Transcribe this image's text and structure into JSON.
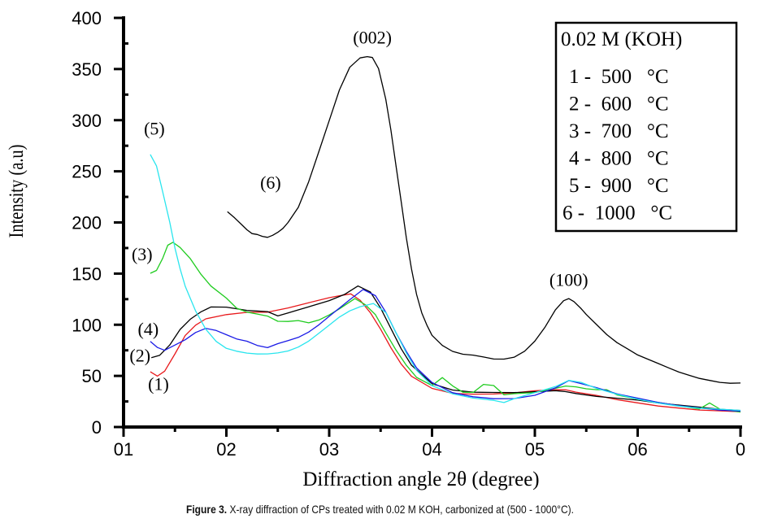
{
  "chart_data": {
    "type": "line",
    "title": "",
    "xlabel": "Diffraction angle 2θ (degree)",
    "ylabel": "Intensity (a.u)",
    "xlim": [
      10,
      70
    ],
    "ylim": [
      0,
      400
    ],
    "x_ticks": [
      10,
      20,
      30,
      40,
      50,
      60,
      70
    ],
    "x_tick_labels": [
      "01",
      "02",
      "03",
      "04",
      "05",
      "06",
      "0"
    ],
    "y_ticks": [
      0,
      50,
      100,
      150,
      200,
      250,
      300,
      350,
      400
    ],
    "y_tick_labels": [
      "0",
      "50",
      "100",
      "150",
      "200",
      "250",
      "300",
      "350",
      "400"
    ],
    "grid": false,
    "legend": {
      "placement": "top-right",
      "title": "0.02 M (KOH)",
      "entries": [
        "1 -  500   °C",
        "2 -  600   °C",
        "3 -  700   °C",
        "4 -  800   °C",
        "5 -  900   °C",
        "6 -  1000   °C"
      ]
    },
    "annotations": [
      {
        "text": "(002)",
        "x": 34.2,
        "y": 375
      },
      {
        "text": "(100)",
        "x": 53.3,
        "y": 138
      },
      {
        "text": "(6)",
        "x": 24.3,
        "y": 233
      },
      {
        "text": "(5)",
        "x": 13.0,
        "y": 286
      },
      {
        "text": "(3)",
        "x": 11.8,
        "y": 163
      },
      {
        "text": "(4)",
        "x": 12.4,
        "y": 90
      },
      {
        "text": "(2)",
        "x": 11.6,
        "y": 64
      },
      {
        "text": "(1)",
        "x": 13.4,
        "y": 36
      }
    ],
    "series": [
      {
        "name": "1 - 500 °C",
        "label": "(1)",
        "color": "#e8191c",
        "x": [
          12.6,
          13.3,
          14.0,
          15.0,
          16.0,
          17.0,
          18.0,
          20.0,
          22.0,
          24.0,
          26.0,
          28.0,
          30.0,
          31.0,
          32.1,
          33.0,
          34.0,
          35.0,
          36.0,
          37.0,
          38.0,
          40.0,
          42.0,
          44.0,
          46.0,
          48.0,
          50.0,
          52.0,
          53.0,
          54.0,
          56.0,
          58.0,
          60.0,
          62.0,
          64.0,
          66.0,
          68.0,
          70.0
        ],
        "y": [
          54,
          50,
          55,
          72,
          90,
          100,
          106,
          110,
          112,
          112,
          116,
          121,
          126,
          128,
          130,
          124,
          112,
          96,
          78,
          62,
          50,
          38,
          33,
          32,
          32,
          33,
          35,
          36,
          36,
          34,
          31,
          27,
          24,
          21,
          19,
          17,
          16,
          15
        ]
      },
      {
        "name": "2 - 600 °C",
        "label": "(2)",
        "color": "#000000",
        "x": [
          12.7,
          13.5,
          14.5,
          15.5,
          16.5,
          17.5,
          18.5,
          20.0,
          22.0,
          24.0,
          25.0,
          26.0,
          28.0,
          30.0,
          31.5,
          32.8,
          34.0,
          35.0,
          36.0,
          37.0,
          38.0,
          40.0,
          42.0,
          44.0,
          46.0,
          48.0,
          50.0,
          52.0,
          53.0,
          54.0,
          56.0,
          58.0,
          60.0,
          62.0,
          64.0,
          66.0,
          68.0,
          70.0
        ],
        "y": [
          68,
          70,
          80,
          95,
          105,
          112,
          117,
          117,
          114,
          113,
          109,
          112,
          118,
          124,
          130,
          138,
          132,
          116,
          96,
          76,
          60,
          42,
          36,
          34,
          34,
          34,
          35,
          36,
          35,
          33,
          30,
          28,
          26,
          23,
          21,
          19,
          17,
          16
        ]
      },
      {
        "name": "3 - 700 °C",
        "label": "(3)",
        "color": "#1fcc1f",
        "x": [
          12.6,
          13.2,
          13.8,
          14.3,
          14.8,
          15.5,
          16.5,
          17.5,
          18.5,
          20.0,
          21.0,
          22.0,
          23.0,
          24.0,
          25.0,
          26.0,
          27.0,
          28.0,
          29.0,
          30.0,
          31.0,
          32.5,
          33.5,
          34.5,
          35.5,
          36.5,
          37.5,
          38.5,
          40.0,
          41.0,
          42.0,
          43.0,
          44.0,
          45.0,
          46.0,
          47.0,
          48.0,
          50.0,
          52.0,
          53.0,
          54.0,
          55.0,
          56.0,
          57.0,
          58.0,
          60.0,
          62.0,
          64.0,
          66.0,
          67.0,
          68.0,
          70.0
        ],
        "y": [
          150,
          153,
          165,
          178,
          181,
          176,
          165,
          150,
          138,
          126,
          116,
          112,
          110,
          108,
          103,
          103,
          104,
          102,
          105,
          110,
          116,
          126,
          120,
          110,
          92,
          75,
          60,
          48,
          40,
          48,
          40,
          34,
          34,
          42,
          41,
          32,
          33,
          34,
          38,
          40,
          39,
          37,
          36,
          36,
          31,
          27,
          24,
          21,
          18,
          24,
          18,
          15
        ]
      },
      {
        "name": "4 - 800 °C",
        "label": "(4)",
        "color": "#1a1ae6",
        "x": [
          12.6,
          13.3,
          14.0,
          15.0,
          16.0,
          17.0,
          18.0,
          19.0,
          20.0,
          21.0,
          22.0,
          23.0,
          24.0,
          25.0,
          26.0,
          27.0,
          28.0,
          29.0,
          30.0,
          31.0,
          32.0,
          33.3,
          34.5,
          35.5,
          36.5,
          37.5,
          38.5,
          40.0,
          42.0,
          44.0,
          46.0,
          48.0,
          50.0,
          52.0,
          53.3,
          54.5,
          56.0,
          58.0,
          60.0,
          62.0,
          64.0,
          66.0,
          68.0,
          70.0
        ],
        "y": [
          84,
          78,
          75,
          80,
          85,
          92,
          96,
          94,
          90,
          86,
          84,
          80,
          78,
          82,
          85,
          88,
          93,
          100,
          108,
          116,
          124,
          134,
          128,
          112,
          92,
          74,
          58,
          44,
          34,
          30,
          28,
          28,
          31,
          38,
          45,
          42,
          38,
          32,
          28,
          24,
          21,
          19,
          17,
          16
        ]
      },
      {
        "name": "5 - 900 °C",
        "label": "(5)",
        "color": "#29e5ee",
        "x": [
          12.6,
          13.2,
          13.8,
          14.5,
          15.0,
          15.5,
          16.0,
          17.0,
          18.0,
          19.0,
          20.0,
          21.0,
          22.0,
          23.0,
          24.0,
          25.0,
          26.0,
          27.0,
          28.0,
          29.0,
          30.0,
          31.0,
          32.0,
          33.0,
          34.3,
          35.5,
          36.5,
          37.5,
          38.5,
          40.0,
          42.0,
          44.0,
          46.0,
          47.0,
          48.0,
          50.0,
          52.0,
          53.3,
          54.5,
          56.0,
          58.0,
          60.0,
          62.0,
          64.0,
          66.0,
          68.0,
          70.0
        ],
        "y": [
          266,
          255,
          230,
          200,
          175,
          155,
          138,
          114,
          96,
          84,
          77,
          74,
          72,
          71,
          71,
          72,
          74,
          78,
          84,
          92,
          100,
          108,
          114,
          118,
          121,
          112,
          92,
          72,
          55,
          40,
          32,
          28,
          26,
          24,
          28,
          34,
          40,
          46,
          44,
          38,
          32,
          27,
          23,
          20,
          18,
          17,
          16
        ]
      },
      {
        "name": "6 - 1000 °C",
        "label": "(6)",
        "color": "#000000",
        "x": [
          20.1,
          20.8,
          21.5,
          22.0,
          22.5,
          23.0,
          23.5,
          24.0,
          24.5,
          25.0,
          25.5,
          26.0,
          27.0,
          28.0,
          29.0,
          30.0,
          31.0,
          32.0,
          33.0,
          33.7,
          34.2,
          34.8,
          35.5,
          36.0,
          36.5,
          37.0,
          37.5,
          38.0,
          38.5,
          39.0,
          39.5,
          40.0,
          41.0,
          42.0,
          43.0,
          44.0,
          45.0,
          46.0,
          47.0,
          48.0,
          49.0,
          50.0,
          51.0,
          52.0,
          52.8,
          53.3,
          53.8,
          54.5,
          55.0,
          56.0,
          57.0,
          58.0,
          59.0,
          60.0,
          61.0,
          62.0,
          63.0,
          64.0,
          65.0,
          66.0,
          67.0,
          68.0,
          69.0,
          70.0
        ],
        "y": [
          211,
          205,
          198,
          193,
          189,
          188,
          186,
          185,
          187,
          190,
          194,
          200,
          215,
          240,
          270,
          300,
          330,
          352,
          361,
          362,
          361,
          350,
          320,
          290,
          255,
          220,
          185,
          155,
          130,
          112,
          100,
          90,
          80,
          74,
          71,
          70,
          68,
          66,
          66,
          68,
          74,
          84,
          98,
          115,
          124,
          126,
          123,
          116,
          110,
          100,
          90,
          82,
          76,
          70,
          66,
          62,
          58,
          54,
          51,
          48,
          46,
          44,
          43,
          43
        ]
      }
    ]
  },
  "caption": {
    "label": "Figure 3.",
    "text": " X-ray diffraction of  CPs treated with 0.02 M  KOH,  carbonized at  (500 - 1000°C)."
  }
}
